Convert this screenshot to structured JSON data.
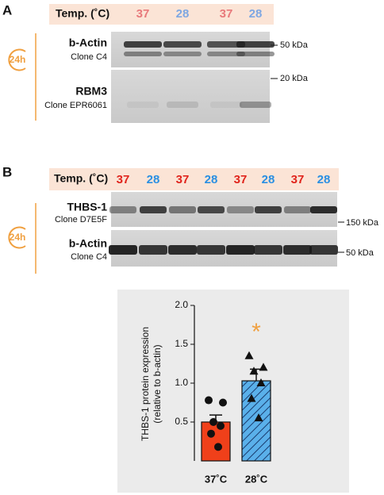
{
  "panel_a": {
    "label": "A",
    "header": "Temp. (˚C)",
    "temps": [
      "37",
      "28",
      "37",
      "28"
    ],
    "duration": "24h",
    "blots": [
      {
        "name": "b-Actin",
        "clone": "Clone C4",
        "marker": "50 kDa"
      },
      {
        "name": "RBM3",
        "clone": "Clone EPR6061",
        "marker": "20 kDa"
      }
    ]
  },
  "panel_b": {
    "label": "B",
    "header": "Temp. (˚C)",
    "temps": [
      "37",
      "28",
      "37",
      "28",
      "37",
      "28",
      "37",
      "28"
    ],
    "duration": "24h",
    "blots": [
      {
        "name": "THBS-1",
        "clone": "Clone D7E5F",
        "marker": "150 kDa"
      },
      {
        "name": "b-Actin",
        "clone": "Clone C4",
        "marker": "50 kDa"
      }
    ]
  },
  "chart_data": {
    "type": "bar",
    "ylabel": [
      "THBS-1 protein expression",
      "(relative to b-actin)"
    ],
    "categories": [
      "37˚C",
      "28˚C"
    ],
    "values": [
      0.5,
      1.03
    ],
    "errors": [
      0.09,
      0.15
    ],
    "points": [
      [
        0.78,
        0.75,
        0.5,
        0.45,
        0.35,
        0.18
      ],
      [
        1.35,
        1.2,
        1.15,
        1.0,
        0.8,
        0.55
      ]
    ],
    "colors": [
      "#f0401a",
      "#5ab0ea"
    ],
    "hatch": [
      false,
      true
    ],
    "ylim": [
      0,
      2
    ],
    "yticks": [
      0.5,
      {
        "value": 1,
        "label": "1.0"
      },
      1.5,
      {
        "value": 2,
        "label": "2.0"
      }
    ],
    "annotation": "*",
    "annotation_color": "#f0a040"
  }
}
